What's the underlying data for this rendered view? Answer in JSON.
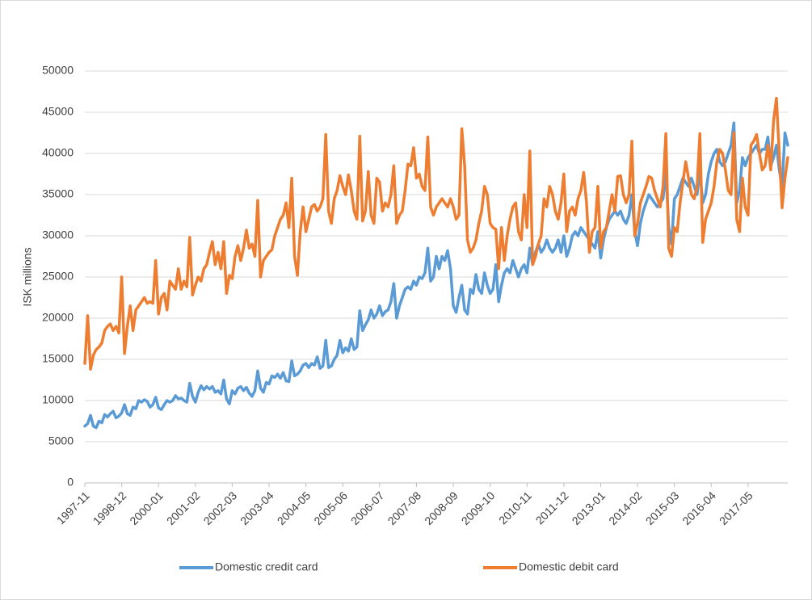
{
  "chart_data": {
    "type": "line",
    "y_label": "ISK millions",
    "ylim": [
      0,
      50000
    ],
    "yticks": [
      0,
      5000,
      10000,
      15000,
      20000,
      25000,
      30000,
      35000,
      40000,
      45000,
      50000
    ],
    "grid": true,
    "legend": "bottom",
    "categories": [
      "1997-11",
      null,
      null,
      null,
      null,
      null,
      null,
      null,
      null,
      null,
      null,
      null,
      null,
      "1998-12",
      null,
      null,
      null,
      null,
      null,
      null,
      null,
      null,
      null,
      null,
      null,
      null,
      "2000-01",
      null,
      null,
      null,
      null,
      null,
      null,
      null,
      null,
      null,
      null,
      null,
      null,
      "2001-02",
      null,
      null,
      null,
      null,
      null,
      null,
      null,
      null,
      null,
      null,
      null,
      null,
      "2002-03",
      null,
      null,
      null,
      null,
      null,
      null,
      null,
      null,
      null,
      null,
      null,
      null,
      "2003-04",
      null,
      null,
      null,
      null,
      null,
      null,
      null,
      null,
      null,
      null,
      null,
      null,
      "2004-05",
      null,
      null,
      null,
      null,
      null,
      null,
      null,
      null,
      null,
      null,
      null,
      null,
      "2005-06",
      null,
      null,
      null,
      null,
      null,
      null,
      null,
      null,
      null,
      null,
      null,
      null,
      "2006-07",
      null,
      null,
      null,
      null,
      null,
      null,
      null,
      null,
      null,
      null,
      null,
      null,
      "2007-08",
      null,
      null,
      null,
      null,
      null,
      null,
      null,
      null,
      null,
      null,
      null,
      null,
      "2008-09",
      null,
      null,
      null,
      null,
      null,
      null,
      null,
      null,
      null,
      null,
      null,
      null,
      "2009-10",
      null,
      null,
      null,
      null,
      null,
      null,
      null,
      null,
      null,
      null,
      null,
      null,
      "2010-11",
      null,
      null,
      null,
      null,
      null,
      null,
      null,
      null,
      null,
      null,
      null,
      null,
      "2011-12",
      null,
      null,
      null,
      null,
      null,
      null,
      null,
      null,
      null,
      null,
      null,
      null,
      "2013-01",
      null,
      null,
      null,
      null,
      null,
      null,
      null,
      null,
      null,
      null,
      null,
      null,
      "2014-02",
      null,
      null,
      null,
      null,
      null,
      null,
      null,
      null,
      null,
      null,
      null,
      null,
      "2015-03",
      null,
      null,
      null,
      null,
      null,
      null,
      null,
      null,
      null,
      null,
      null,
      null,
      "2016-04",
      null,
      null,
      null,
      null,
      null,
      null,
      null,
      null,
      null,
      null,
      null,
      null,
      "2017-05",
      null,
      null,
      null,
      null,
      null,
      null,
      null,
      null,
      null,
      null,
      null,
      null,
      null,
      null
    ],
    "series": [
      {
        "name": "Domestic credit card",
        "color": "#5b9bd5",
        "values": [
          6900,
          7200,
          8200,
          6900,
          6700,
          7500,
          7300,
          8300,
          8000,
          8400,
          8700,
          7900,
          8100,
          8500,
          9500,
          8400,
          8200,
          9200,
          9000,
          10000,
          9800,
          10100,
          9900,
          9200,
          9500,
          10400,
          9100,
          8900,
          9500,
          10000,
          9800,
          10000,
          10600,
          10200,
          10300,
          10000,
          9800,
          12100,
          10500,
          9800,
          11000,
          11800,
          11300,
          11700,
          11400,
          11700,
          11000,
          11200,
          10800,
          12500,
          10200,
          9600,
          11200,
          10800,
          11500,
          11700,
          11200,
          11600,
          10900,
          10500,
          11200,
          13600,
          11500,
          11000,
          12200,
          12000,
          13000,
          12800,
          13200,
          12700,
          13400,
          12400,
          12300,
          14800,
          13000,
          13200,
          13600,
          14300,
          14500,
          14000,
          14500,
          14300,
          15300,
          13900,
          14200,
          17300,
          14000,
          14200,
          15000,
          15500,
          17300,
          15800,
          16400,
          16000,
          17500,
          16200,
          16500,
          20900,
          18500,
          19200,
          19800,
          21000,
          20000,
          20500,
          21500,
          20300,
          20800,
          21000,
          22000,
          24200,
          20000,
          21500,
          22500,
          23500,
          23800,
          23500,
          24500,
          24000,
          25000,
          24800,
          25500,
          28500,
          24500,
          25000,
          27500,
          26000,
          27500,
          27000,
          28200,
          26000,
          21500,
          20700,
          22500,
          24000,
          21000,
          20500,
          23500,
          23000,
          25300,
          23500,
          23000,
          25500,
          24000,
          23000,
          23500,
          26500,
          22000,
          24000,
          25500,
          26000,
          25500,
          27000,
          26000,
          25000,
          26000,
          26500,
          25500,
          28500,
          26500,
          28000,
          29000,
          28000,
          28500,
          29500,
          28500,
          28000,
          28500,
          29500,
          28000,
          30000,
          27500,
          28500,
          30000,
          30500,
          30000,
          31000,
          30500,
          30000,
          29500,
          29000,
          28500,
          30500,
          27300,
          29500,
          31000,
          32000,
          32500,
          33000,
          32500,
          33000,
          32000,
          31500,
          32500,
          35000,
          30500,
          28800,
          31500,
          33000,
          34000,
          35000,
          34500,
          34000,
          33500,
          34000,
          34500,
          38000,
          31000,
          29000,
          34500,
          35000,
          36000,
          37000,
          36500,
          36000,
          37000,
          36000,
          35000,
          37800,
          34000,
          35000,
          37500,
          39000,
          40000,
          40500,
          39000,
          38500,
          39000,
          40000,
          41000,
          43700,
          34000,
          35500,
          39500,
          38500,
          39500,
          40000,
          40500,
          41000,
          40000,
          40500,
          40500,
          42000,
          38500,
          39500,
          41000,
          38000,
          36000,
          42500,
          41000
        ]
      },
      {
        "name": "Domestic debit card",
        "color": "#ed7d31",
        "values": [
          14500,
          20300,
          13800,
          15500,
          16200,
          16500,
          17000,
          18500,
          19000,
          19300,
          18500,
          19000,
          18200,
          25000,
          15700,
          19000,
          21500,
          18500,
          21000,
          21500,
          22000,
          22500,
          21800,
          22000,
          21800,
          27000,
          20500,
          22500,
          23000,
          21000,
          24500,
          24000,
          23500,
          26000,
          23500,
          24500,
          23800,
          29800,
          22800,
          24000,
          25000,
          24500,
          26000,
          26500,
          28000,
          29300,
          26500,
          28000,
          26000,
          29300,
          23000,
          25200,
          24800,
          27500,
          28800,
          27000,
          28500,
          30700,
          28500,
          29000,
          27500,
          34300,
          25000,
          27000,
          27500,
          28000,
          28300,
          30000,
          31000,
          32000,
          32500,
          34000,
          31000,
          37000,
          27500,
          25200,
          30500,
          33500,
          30500,
          32000,
          33500,
          33800,
          33000,
          33500,
          34500,
          42300,
          33000,
          31500,
          34500,
          35500,
          37300,
          36000,
          35000,
          37400,
          35500,
          33000,
          32000,
          42100,
          31800,
          33000,
          37800,
          32500,
          31500,
          37000,
          36500,
          33000,
          34000,
          33500,
          35000,
          38500,
          31500,
          32500,
          33000,
          35500,
          38700,
          38500,
          40700,
          37000,
          37500,
          36000,
          35500,
          42000,
          33500,
          32500,
          33500,
          34000,
          34500,
          34000,
          33500,
          34500,
          33500,
          32000,
          32500,
          43000,
          38500,
          29500,
          28000,
          28500,
          29500,
          31500,
          33000,
          36000,
          35000,
          31500,
          31000,
          30800,
          26000,
          31000,
          27000,
          30000,
          32000,
          33500,
          34000,
          30500,
          29500,
          35000,
          31000,
          40300,
          26500,
          27500,
          29000,
          30000,
          34500,
          33500,
          36000,
          35000,
          33000,
          32000,
          34000,
          37500,
          30500,
          33000,
          33500,
          32500,
          34500,
          35500,
          37700,
          34000,
          28000,
          30500,
          31000,
          36000,
          28500,
          30500,
          31000,
          33000,
          35000,
          33000,
          37200,
          37300,
          35000,
          34000,
          35000,
          41500,
          30000,
          31500,
          34000,
          35000,
          36000,
          37200,
          37000,
          35500,
          34500,
          33500,
          36000,
          42400,
          28500,
          27500,
          31000,
          30500,
          34000,
          36500,
          39000,
          37000,
          35000,
          34500,
          36000,
          42400,
          29200,
          32000,
          33000,
          34000,
          36000,
          39000,
          40500,
          40000,
          38000,
          35500,
          35000,
          42500,
          32000,
          30500,
          37000,
          33500,
          32500,
          41000,
          41500,
          42300,
          40000,
          38000,
          38500,
          41000,
          38000,
          44000,
          46700,
          40000,
          33400,
          37000,
          39500
        ]
      }
    ]
  }
}
